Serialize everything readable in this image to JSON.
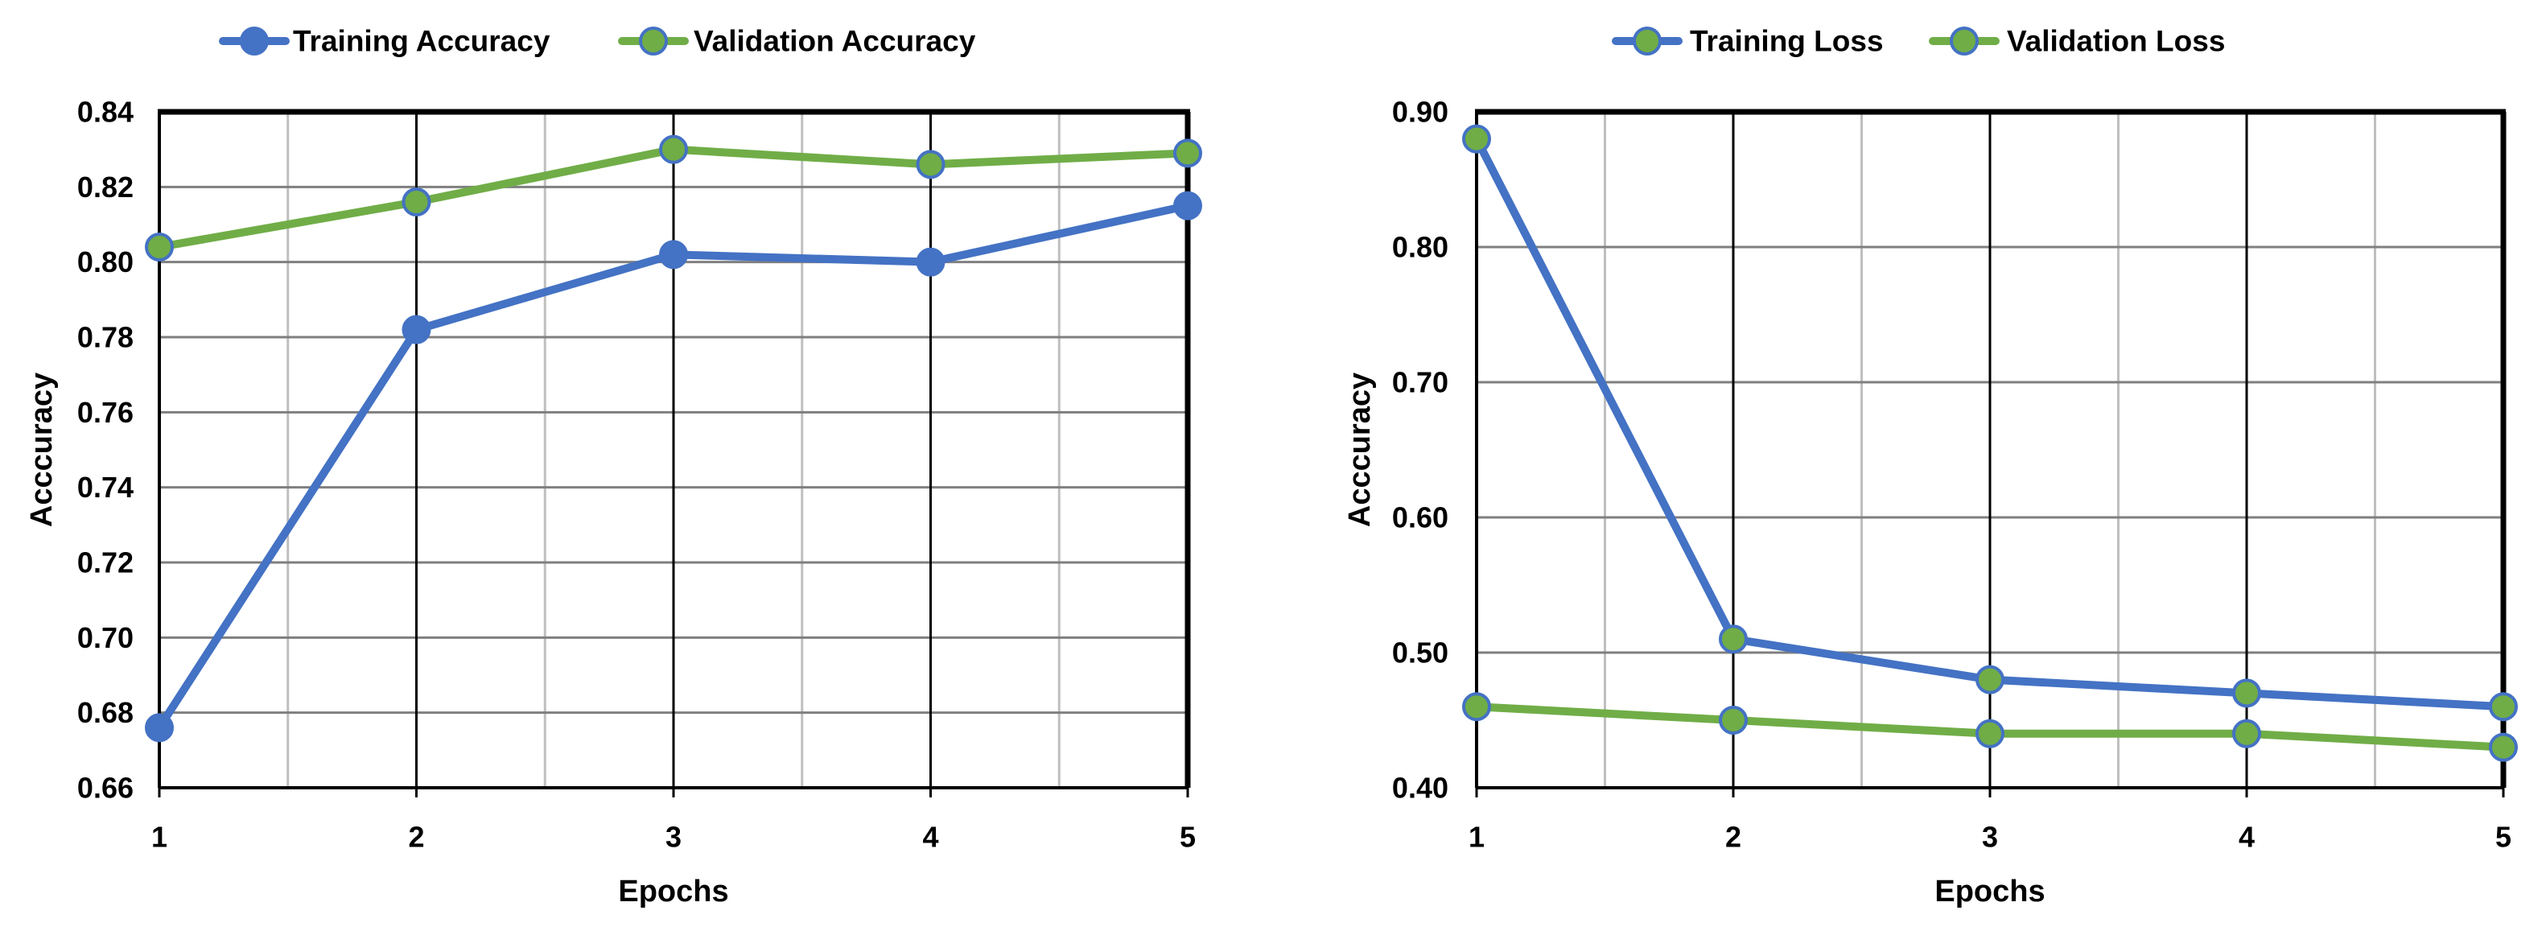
{
  "chart_data": [
    {
      "type": "line",
      "x": [
        1,
        2,
        3,
        4,
        5
      ],
      "xticks": [
        "1",
        "2",
        "3",
        "4",
        "5"
      ],
      "xlim": [
        1,
        5
      ],
      "xlabel": "Epochs",
      "ylabel": "Acccuracy",
      "ylim": [
        0.66,
        0.84
      ],
      "yticks": [
        "0.66",
        "0.68",
        "0.70",
        "0.72",
        "0.74",
        "0.76",
        "0.78",
        "0.80",
        "0.82",
        "0.84"
      ],
      "grid": true,
      "legend": "top",
      "series": [
        {
          "name": "Training Accuracy",
          "values": [
            0.676,
            0.782,
            0.802,
            0.8,
            0.815
          ],
          "line_color": "#4472C4",
          "marker_fill": "#4472C4",
          "marker_stroke": "#4472C4"
        },
        {
          "name": "Validation Accuracy",
          "values": [
            0.804,
            0.816,
            0.83,
            0.826,
            0.829
          ],
          "line_color": "#70AD47",
          "marker_fill": "#70AD47",
          "marker_stroke": "#4472C4"
        }
      ]
    },
    {
      "type": "line",
      "x": [
        1,
        2,
        3,
        4,
        5
      ],
      "xticks": [
        "1",
        "2",
        "3",
        "4",
        "5"
      ],
      "xlim": [
        1,
        5
      ],
      "xlabel": "Epochs",
      "ylabel": "Acccuracy",
      "ylim": [
        0.4,
        0.9
      ],
      "yticks": [
        "0.40",
        "0.50",
        "0.60",
        "0.70",
        "0.80",
        "0.90"
      ],
      "grid": true,
      "legend": "top",
      "series": [
        {
          "name": "Training Loss",
          "values": [
            0.88,
            0.51,
            0.48,
            0.47,
            0.46
          ],
          "line_color": "#4472C4",
          "marker_fill": "#70AD47",
          "marker_stroke": "#4472C4"
        },
        {
          "name": "Validation Loss",
          "values": [
            0.46,
            0.45,
            0.44,
            0.44,
            0.43
          ],
          "line_color": "#70AD47",
          "marker_fill": "#70AD47",
          "marker_stroke": "#4472C4"
        }
      ]
    }
  ]
}
